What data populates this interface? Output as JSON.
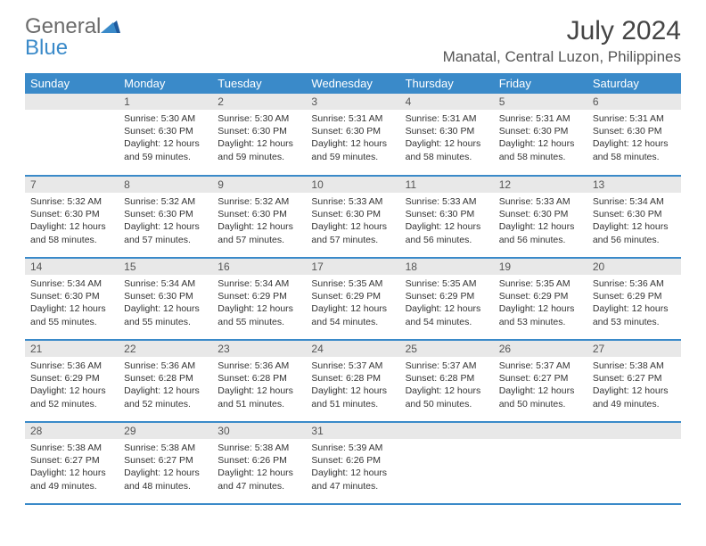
{
  "logo": {
    "text1": "General",
    "text2": "Blue"
  },
  "title": "July 2024",
  "location": "Manatal, Central Luzon, Philippines",
  "colors": {
    "header_bg": "#3a8ac9",
    "header_text": "#ffffff",
    "daynum_bg": "#e8e8e8",
    "border": "#3a8ac9",
    "logo_gray": "#6b6b6b",
    "logo_blue": "#3a8ac9"
  },
  "weekdays": [
    "Sunday",
    "Monday",
    "Tuesday",
    "Wednesday",
    "Thursday",
    "Friday",
    "Saturday"
  ],
  "weeks": [
    [
      null,
      {
        "n": "1",
        "sr": "5:30 AM",
        "ss": "6:30 PM",
        "dl": "12 hours and 59 minutes."
      },
      {
        "n": "2",
        "sr": "5:30 AM",
        "ss": "6:30 PM",
        "dl": "12 hours and 59 minutes."
      },
      {
        "n": "3",
        "sr": "5:31 AM",
        "ss": "6:30 PM",
        "dl": "12 hours and 59 minutes."
      },
      {
        "n": "4",
        "sr": "5:31 AM",
        "ss": "6:30 PM",
        "dl": "12 hours and 58 minutes."
      },
      {
        "n": "5",
        "sr": "5:31 AM",
        "ss": "6:30 PM",
        "dl": "12 hours and 58 minutes."
      },
      {
        "n": "6",
        "sr": "5:31 AM",
        "ss": "6:30 PM",
        "dl": "12 hours and 58 minutes."
      }
    ],
    [
      {
        "n": "7",
        "sr": "5:32 AM",
        "ss": "6:30 PM",
        "dl": "12 hours and 58 minutes."
      },
      {
        "n": "8",
        "sr": "5:32 AM",
        "ss": "6:30 PM",
        "dl": "12 hours and 57 minutes."
      },
      {
        "n": "9",
        "sr": "5:32 AM",
        "ss": "6:30 PM",
        "dl": "12 hours and 57 minutes."
      },
      {
        "n": "10",
        "sr": "5:33 AM",
        "ss": "6:30 PM",
        "dl": "12 hours and 57 minutes."
      },
      {
        "n": "11",
        "sr": "5:33 AM",
        "ss": "6:30 PM",
        "dl": "12 hours and 56 minutes."
      },
      {
        "n": "12",
        "sr": "5:33 AM",
        "ss": "6:30 PM",
        "dl": "12 hours and 56 minutes."
      },
      {
        "n": "13",
        "sr": "5:34 AM",
        "ss": "6:30 PM",
        "dl": "12 hours and 56 minutes."
      }
    ],
    [
      {
        "n": "14",
        "sr": "5:34 AM",
        "ss": "6:30 PM",
        "dl": "12 hours and 55 minutes."
      },
      {
        "n": "15",
        "sr": "5:34 AM",
        "ss": "6:30 PM",
        "dl": "12 hours and 55 minutes."
      },
      {
        "n": "16",
        "sr": "5:34 AM",
        "ss": "6:29 PM",
        "dl": "12 hours and 55 minutes."
      },
      {
        "n": "17",
        "sr": "5:35 AM",
        "ss": "6:29 PM",
        "dl": "12 hours and 54 minutes."
      },
      {
        "n": "18",
        "sr": "5:35 AM",
        "ss": "6:29 PM",
        "dl": "12 hours and 54 minutes."
      },
      {
        "n": "19",
        "sr": "5:35 AM",
        "ss": "6:29 PM",
        "dl": "12 hours and 53 minutes."
      },
      {
        "n": "20",
        "sr": "5:36 AM",
        "ss": "6:29 PM",
        "dl": "12 hours and 53 minutes."
      }
    ],
    [
      {
        "n": "21",
        "sr": "5:36 AM",
        "ss": "6:29 PM",
        "dl": "12 hours and 52 minutes."
      },
      {
        "n": "22",
        "sr": "5:36 AM",
        "ss": "6:28 PM",
        "dl": "12 hours and 52 minutes."
      },
      {
        "n": "23",
        "sr": "5:36 AM",
        "ss": "6:28 PM",
        "dl": "12 hours and 51 minutes."
      },
      {
        "n": "24",
        "sr": "5:37 AM",
        "ss": "6:28 PM",
        "dl": "12 hours and 51 minutes."
      },
      {
        "n": "25",
        "sr": "5:37 AM",
        "ss": "6:28 PM",
        "dl": "12 hours and 50 minutes."
      },
      {
        "n": "26",
        "sr": "5:37 AM",
        "ss": "6:27 PM",
        "dl": "12 hours and 50 minutes."
      },
      {
        "n": "27",
        "sr": "5:38 AM",
        "ss": "6:27 PM",
        "dl": "12 hours and 49 minutes."
      }
    ],
    [
      {
        "n": "28",
        "sr": "5:38 AM",
        "ss": "6:27 PM",
        "dl": "12 hours and 49 minutes."
      },
      {
        "n": "29",
        "sr": "5:38 AM",
        "ss": "6:27 PM",
        "dl": "12 hours and 48 minutes."
      },
      {
        "n": "30",
        "sr": "5:38 AM",
        "ss": "6:26 PM",
        "dl": "12 hours and 47 minutes."
      },
      {
        "n": "31",
        "sr": "5:39 AM",
        "ss": "6:26 PM",
        "dl": "12 hours and 47 minutes."
      },
      null,
      null,
      null
    ]
  ],
  "labels": {
    "sunrise": "Sunrise:",
    "sunset": "Sunset:",
    "daylight": "Daylight:"
  }
}
